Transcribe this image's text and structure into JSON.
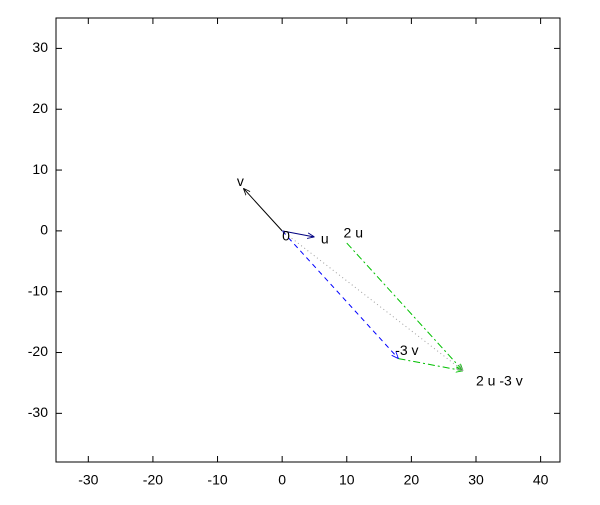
{
  "chart_data": {
    "type": "vector",
    "xlim": [
      -35,
      43
    ],
    "ylim": [
      -38,
      35
    ],
    "xticks": [
      -30,
      -20,
      -10,
      0,
      10,
      20,
      30,
      40
    ],
    "yticks": [
      -30,
      -20,
      -10,
      0,
      10,
      20,
      30
    ],
    "vectors": [
      {
        "x1": 0,
        "y1": 0,
        "x2": -6,
        "y2": 7,
        "color": "#000000",
        "style": "solid"
      },
      {
        "x1": 0,
        "y1": 0,
        "x2": 5,
        "y2": -1,
        "color": "#000080",
        "style": "solid"
      },
      {
        "x1": 10,
        "y1": -2,
        "x2": 28,
        "y2": -23,
        "color": "#00c000",
        "style": "dashdot"
      },
      {
        "x1": 0,
        "y1": 0,
        "x2": 18,
        "y2": -21,
        "color": "#0000ff",
        "style": "dashed"
      },
      {
        "x1": 18,
        "y1": -21,
        "x2": 28,
        "y2": -23,
        "color": "#00c000",
        "style": "dashdot"
      },
      {
        "x1": 0,
        "y1": 0,
        "x2": 28,
        "y2": -23,
        "color": "#a0a0a0",
        "style": "dotted"
      }
    ],
    "annotations": [
      {
        "text": "v",
        "x": -7,
        "y": 8
      },
      {
        "text": "u",
        "x": 6,
        "y": -1.5
      },
      {
        "text": "0",
        "x": 0,
        "y": -1
      },
      {
        "text": "2 u",
        "x": 9.5,
        "y": -0.5
      },
      {
        "text": "-3 v",
        "x": 17.5,
        "y": -19.8
      },
      {
        "text": "2 u -3 v",
        "x": 30,
        "y": -24.8
      }
    ]
  }
}
